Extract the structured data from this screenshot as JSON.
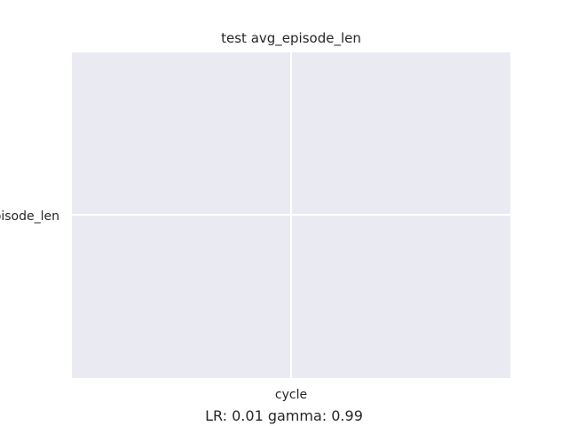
{
  "chart_data": {
    "type": "line",
    "title": "test avg_episode_len",
    "xlabel": "cycle",
    "ylabel": "avg_episode_len",
    "series": [],
    "grid": true
  },
  "footer": {
    "text": "LR: 0.01 gamma: 0.99"
  },
  "colors": {
    "plot_background": "#eaeaf2",
    "grid": "#ffffff",
    "text": "#262626"
  }
}
